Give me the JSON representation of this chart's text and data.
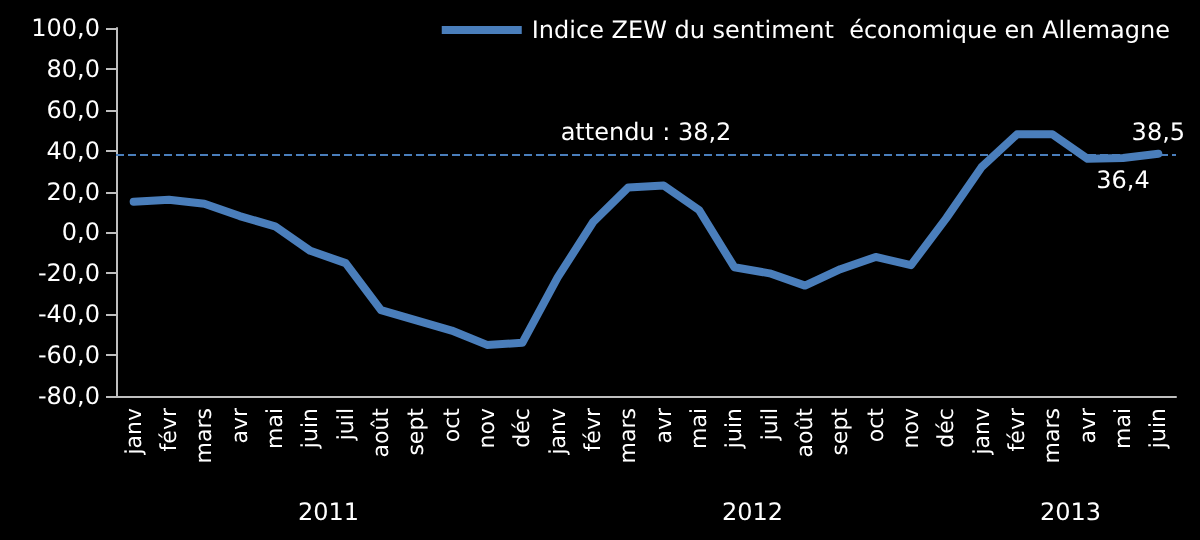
{
  "chart_data": {
    "type": "line",
    "categories": [
      "janv",
      "févr",
      "mars",
      "avr",
      "mai",
      "juin",
      "juil",
      "août",
      "sept",
      "oct",
      "nov",
      "déc",
      "janv",
      "févr",
      "mars",
      "avr",
      "mai",
      "juin",
      "juil",
      "août",
      "sept",
      "oct",
      "nov",
      "déc",
      "janv",
      "févr",
      "mars",
      "avr",
      "mai",
      "juin"
    ],
    "series": [
      {
        "name": "Indice ZEW du sentiment  économique en Allemagne",
        "color": "#4a7ebb",
        "values": [
          15,
          16,
          14,
          8,
          3,
          -9,
          -15,
          -38,
          -43,
          -48,
          -55,
          -54,
          -22,
          5,
          22,
          23,
          11,
          -17,
          -20,
          -26,
          -18,
          -12,
          -16,
          7,
          32,
          48,
          48,
          36,
          36.4,
          38.5
        ],
        "value_labels": [
          null,
          null,
          null,
          null,
          null,
          null,
          null,
          null,
          null,
          null,
          null,
          null,
          null,
          null,
          null,
          null,
          null,
          null,
          null,
          null,
          null,
          null,
          null,
          null,
          null,
          null,
          null,
          null,
          "36,4",
          "38,5"
        ]
      }
    ],
    "ylim": [
      -80,
      100
    ],
    "yticks": [
      {
        "value": -80,
        "label": "-80,0"
      },
      {
        "value": -60,
        "label": "-60,0"
      },
      {
        "value": -40,
        "label": "-40,0"
      },
      {
        "value": -20,
        "label": "-20,0"
      },
      {
        "value": 0,
        "label": "0,0"
      },
      {
        "value": 20,
        "label": "20,0"
      },
      {
        "value": 40,
        "label": "40,0"
      },
      {
        "value": 60,
        "label": "60,0"
      },
      {
        "value": 80,
        "label": "80,0"
      },
      {
        "value": 100,
        "label": "100,0"
      }
    ],
    "ref_lines": [
      {
        "axis": "y",
        "value": 38.2,
        "label": "attendu : 38,2",
        "color": "#4a7ebb",
        "line_style": "dashed"
      }
    ],
    "annotations": [
      "2011",
      "2012",
      "2013"
    ],
    "grid": false,
    "legend": "top right",
    "marker": "none",
    "line_style": "solid"
  }
}
